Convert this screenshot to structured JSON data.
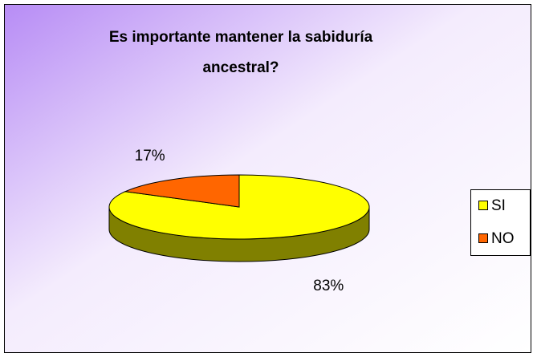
{
  "chart_data": {
    "type": "pie3d",
    "title": "Es importante mantener la sabiduría ancestral?",
    "categories": [
      "SI",
      "NO"
    ],
    "values": [
      83,
      17
    ],
    "value_labels": [
      "83%",
      "17%"
    ],
    "colors": [
      "#ffff00",
      "#ff6600"
    ],
    "side_colors": [
      "#808000",
      "#993300"
    ],
    "legend": "right"
  }
}
